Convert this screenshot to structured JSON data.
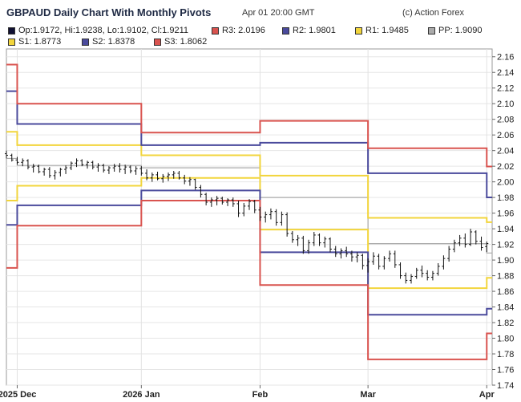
{
  "header": {
    "title": "GBPAUD Daily Chart With Monthly Pivots",
    "timestamp": "Apr 01 20:00 GMT",
    "credit": "(c) Action Forex"
  },
  "legend": [
    {
      "text": "Op:1.9172, Hi:1.9238, Lo:1.9102, Cl:1.9211",
      "color": "#111133"
    },
    {
      "text": "R3: 2.0196",
      "color": "#d9534f"
    },
    {
      "text": "R2: 1.9801",
      "color": "#4a4a9c"
    },
    {
      "text": "R1: 1.9485",
      "color": "#f2d53c"
    },
    {
      "text": "PP: 1.9090",
      "color": "#aaaaaa"
    },
    {
      "text": "S1: 1.8773",
      "color": "#f2d53c"
    },
    {
      "text": "S2: 1.8378",
      "color": "#4a4a9c"
    },
    {
      "text": "S3: 1.8062",
      "color": "#d9534f"
    }
  ],
  "chart_data": {
    "type": "line",
    "title": "GBPAUD Daily Chart With Monthly Pivots",
    "ylim": [
      1.74,
      2.17
    ],
    "y_ticks": [
      "2.16",
      "2.14",
      "2.12",
      "2.10",
      "2.08",
      "2.06",
      "2.04",
      "2.02",
      "2.00",
      "1.98",
      "1.96",
      "1.94",
      "1.92",
      "1.90",
      "1.88",
      "1.86",
      "1.84",
      "1.82",
      "1.80",
      "1.78",
      "1.76",
      "1.74"
    ],
    "x_ticks": [
      {
        "label": "2025 Dec",
        "day": 2
      },
      {
        "label": "2026 Jan",
        "day": 25
      },
      {
        "label": "Feb",
        "day": 47
      },
      {
        "label": "Mar",
        "day": 67
      },
      {
        "label": "Apr",
        "day": 89
      }
    ],
    "x_range": [
      0,
      90
    ],
    "grid": true,
    "pivot_periods": [
      {
        "start": 0,
        "end": 2,
        "R3": 2.15,
        "R2": 2.116,
        "R1": 2.064,
        "PP": 2.03,
        "S1": 1.976,
        "S2": 1.945,
        "S3": 1.89
      },
      {
        "start": 2,
        "end": 25,
        "R3": 2.1,
        "R2": 2.074,
        "R1": 2.047,
        "PP": 2.021,
        "S1": 1.995,
        "S2": 1.97,
        "S3": 1.944
      },
      {
        "start": 25,
        "end": 47,
        "R3": 2.063,
        "R2": 2.047,
        "R1": 2.034,
        "PP": 2.018,
        "S1": 2.005,
        "S2": 1.989,
        "S3": 1.976
      },
      {
        "start": 47,
        "end": 67,
        "R3": 2.078,
        "R2": 2.05,
        "R1": 2.008,
        "PP": 1.98,
        "S1": 1.939,
        "S2": 1.91,
        "S3": 1.868
      },
      {
        "start": 67,
        "end": 89,
        "R3": 2.043,
        "R2": 2.011,
        "R1": 1.954,
        "PP": 1.921,
        "S1": 1.864,
        "S2": 1.83,
        "S3": 1.773
      },
      {
        "start": 89,
        "end": 90,
        "R3": 2.0196,
        "R2": 1.9801,
        "R1": 1.9485,
        "PP": 1.909,
        "S1": 1.8773,
        "S2": 1.8378,
        "S3": 1.8062
      }
    ],
    "ohlc": [
      {
        "day": 0,
        "o": 2.036,
        "h": 2.04,
        "l": 2.03,
        "c": 2.034
      },
      {
        "day": 1,
        "o": 2.034,
        "h": 2.036,
        "l": 2.026,
        "c": 2.028
      },
      {
        "day": 2,
        "o": 2.028,
        "h": 2.032,
        "l": 2.022,
        "c": 2.025
      },
      {
        "day": 3,
        "o": 2.025,
        "h": 2.03,
        "l": 2.02,
        "c": 2.027
      },
      {
        "day": 4,
        "o": 2.027,
        "h": 2.029,
        "l": 2.016,
        "c": 2.019
      },
      {
        "day": 5,
        "o": 2.019,
        "h": 2.023,
        "l": 2.012,
        "c": 2.02
      },
      {
        "day": 6,
        "o": 2.02,
        "h": 2.022,
        "l": 2.011,
        "c": 2.013
      },
      {
        "day": 7,
        "o": 2.013,
        "h": 2.018,
        "l": 2.008,
        "c": 2.016
      },
      {
        "day": 8,
        "o": 2.016,
        "h": 2.019,
        "l": 2.005,
        "c": 2.008
      },
      {
        "day": 9,
        "o": 2.008,
        "h": 2.015,
        "l": 2.003,
        "c": 2.012
      },
      {
        "day": 10,
        "o": 2.012,
        "h": 2.018,
        "l": 2.007,
        "c": 2.016
      },
      {
        "day": 11,
        "o": 2.016,
        "h": 2.021,
        "l": 2.01,
        "c": 2.018
      },
      {
        "day": 12,
        "o": 2.018,
        "h": 2.026,
        "l": 2.015,
        "c": 2.024
      },
      {
        "day": 13,
        "o": 2.024,
        "h": 2.03,
        "l": 2.019,
        "c": 2.027
      },
      {
        "day": 14,
        "o": 2.027,
        "h": 2.029,
        "l": 2.02,
        "c": 2.022
      },
      {
        "day": 15,
        "o": 2.022,
        "h": 2.027,
        "l": 2.017,
        "c": 2.025
      },
      {
        "day": 16,
        "o": 2.025,
        "h": 2.027,
        "l": 2.016,
        "c": 2.019
      },
      {
        "day": 17,
        "o": 2.019,
        "h": 2.024,
        "l": 2.013,
        "c": 2.021
      },
      {
        "day": 18,
        "o": 2.021,
        "h": 2.023,
        "l": 2.012,
        "c": 2.015
      },
      {
        "day": 19,
        "o": 2.015,
        "h": 2.02,
        "l": 2.01,
        "c": 2.018
      },
      {
        "day": 20,
        "o": 2.018,
        "h": 2.023,
        "l": 2.013,
        "c": 2.02
      },
      {
        "day": 21,
        "o": 2.02,
        "h": 2.024,
        "l": 2.012,
        "c": 2.016
      },
      {
        "day": 22,
        "o": 2.016,
        "h": 2.022,
        "l": 2.01,
        "c": 2.019
      },
      {
        "day": 23,
        "o": 2.019,
        "h": 2.021,
        "l": 2.011,
        "c": 2.014
      },
      {
        "day": 24,
        "o": 2.014,
        "h": 2.02,
        "l": 2.009,
        "c": 2.017
      },
      {
        "day": 25,
        "o": 2.017,
        "h": 2.02,
        "l": 2.008,
        "c": 2.011
      },
      {
        "day": 26,
        "o": 2.011,
        "h": 2.016,
        "l": 2.002,
        "c": 2.005
      },
      {
        "day": 27,
        "o": 2.005,
        "h": 2.012,
        "l": 2.0,
        "c": 2.009
      },
      {
        "day": 28,
        "o": 2.009,
        "h": 2.013,
        "l": 2.002,
        "c": 2.004
      },
      {
        "day": 29,
        "o": 2.004,
        "h": 2.01,
        "l": 1.999,
        "c": 2.007
      },
      {
        "day": 30,
        "o": 2.007,
        "h": 2.012,
        "l": 2.001,
        "c": 2.009
      },
      {
        "day": 31,
        "o": 2.009,
        "h": 2.014,
        "l": 2.004,
        "c": 2.011
      },
      {
        "day": 32,
        "o": 2.011,
        "h": 2.014,
        "l": 2.003,
        "c": 2.005
      },
      {
        "day": 33,
        "o": 2.005,
        "h": 2.009,
        "l": 1.997,
        "c": 2.001
      },
      {
        "day": 34,
        "o": 2.001,
        "h": 2.006,
        "l": 1.995,
        "c": 2.003
      },
      {
        "day": 35,
        "o": 2.003,
        "h": 2.004,
        "l": 1.99,
        "c": 1.993
      },
      {
        "day": 36,
        "o": 1.993,
        "h": 1.996,
        "l": 1.98,
        "c": 1.984
      },
      {
        "day": 37,
        "o": 1.984,
        "h": 1.986,
        "l": 1.97,
        "c": 1.974
      },
      {
        "day": 38,
        "o": 1.974,
        "h": 1.98,
        "l": 1.968,
        "c": 1.977
      },
      {
        "day": 39,
        "o": 1.977,
        "h": 1.982,
        "l": 1.97,
        "c": 1.979
      },
      {
        "day": 40,
        "o": 1.979,
        "h": 1.981,
        "l": 1.971,
        "c": 1.974
      },
      {
        "day": 41,
        "o": 1.974,
        "h": 1.979,
        "l": 1.969,
        "c": 1.977
      },
      {
        "day": 42,
        "o": 1.977,
        "h": 1.98,
        "l": 1.968,
        "c": 1.972
      },
      {
        "day": 43,
        "o": 1.972,
        "h": 1.976,
        "l": 1.955,
        "c": 1.96
      },
      {
        "day": 44,
        "o": 1.96,
        "h": 1.973,
        "l": 1.956,
        "c": 1.969
      },
      {
        "day": 45,
        "o": 1.969,
        "h": 1.978,
        "l": 1.964,
        "c": 1.975
      },
      {
        "day": 46,
        "o": 1.975,
        "h": 1.977,
        "l": 1.96,
        "c": 1.964
      },
      {
        "day": 47,
        "o": 1.964,
        "h": 1.968,
        "l": 1.95,
        "c": 1.955
      },
      {
        "day": 48,
        "o": 1.955,
        "h": 1.962,
        "l": 1.948,
        "c": 1.958
      },
      {
        "day": 49,
        "o": 1.958,
        "h": 1.966,
        "l": 1.952,
        "c": 1.962
      },
      {
        "day": 50,
        "o": 1.962,
        "h": 1.965,
        "l": 1.944,
        "c": 1.948
      },
      {
        "day": 51,
        "o": 1.948,
        "h": 1.962,
        "l": 1.944,
        "c": 1.958
      },
      {
        "day": 52,
        "o": 1.958,
        "h": 1.961,
        "l": 1.93,
        "c": 1.934
      },
      {
        "day": 53,
        "o": 1.934,
        "h": 1.937,
        "l": 1.922,
        "c": 1.926
      },
      {
        "day": 54,
        "o": 1.926,
        "h": 1.932,
        "l": 1.918,
        "c": 1.928
      },
      {
        "day": 55,
        "o": 1.928,
        "h": 1.931,
        "l": 1.908,
        "c": 1.912
      },
      {
        "day": 56,
        "o": 1.912,
        "h": 1.926,
        "l": 1.908,
        "c": 1.922
      },
      {
        "day": 57,
        "o": 1.922,
        "h": 1.936,
        "l": 1.918,
        "c": 1.932
      },
      {
        "day": 58,
        "o": 1.932,
        "h": 1.934,
        "l": 1.918,
        "c": 1.922
      },
      {
        "day": 59,
        "o": 1.922,
        "h": 1.93,
        "l": 1.916,
        "c": 1.927
      },
      {
        "day": 60,
        "o": 1.927,
        "h": 1.929,
        "l": 1.91,
        "c": 1.914
      },
      {
        "day": 61,
        "o": 1.914,
        "h": 1.918,
        "l": 1.904,
        "c": 1.908
      },
      {
        "day": 62,
        "o": 1.908,
        "h": 1.915,
        "l": 1.902,
        "c": 1.912
      },
      {
        "day": 63,
        "o": 1.912,
        "h": 1.917,
        "l": 1.904,
        "c": 1.908
      },
      {
        "day": 64,
        "o": 1.908,
        "h": 1.912,
        "l": 1.898,
        "c": 1.904
      },
      {
        "day": 65,
        "o": 1.904,
        "h": 1.91,
        "l": 1.897,
        "c": 1.906
      },
      {
        "day": 66,
        "o": 1.906,
        "h": 1.908,
        "l": 1.888,
        "c": 1.893
      },
      {
        "day": 67,
        "o": 1.893,
        "h": 1.902,
        "l": 1.884,
        "c": 1.898
      },
      {
        "day": 68,
        "o": 1.898,
        "h": 1.91,
        "l": 1.894,
        "c": 1.905
      },
      {
        "day": 69,
        "o": 1.905,
        "h": 1.908,
        "l": 1.888,
        "c": 1.892
      },
      {
        "day": 70,
        "o": 1.892,
        "h": 1.905,
        "l": 1.888,
        "c": 1.902
      },
      {
        "day": 71,
        "o": 1.902,
        "h": 1.912,
        "l": 1.898,
        "c": 1.908
      },
      {
        "day": 72,
        "o": 1.908,
        "h": 1.912,
        "l": 1.89,
        "c": 1.894
      },
      {
        "day": 73,
        "o": 1.894,
        "h": 1.897,
        "l": 1.876,
        "c": 1.88
      },
      {
        "day": 74,
        "o": 1.88,
        "h": 1.884,
        "l": 1.87,
        "c": 1.874
      },
      {
        "day": 75,
        "o": 1.874,
        "h": 1.882,
        "l": 1.87,
        "c": 1.879
      },
      {
        "day": 76,
        "o": 1.879,
        "h": 1.89,
        "l": 1.876,
        "c": 1.887
      },
      {
        "day": 77,
        "o": 1.887,
        "h": 1.893,
        "l": 1.878,
        "c": 1.883
      },
      {
        "day": 78,
        "o": 1.883,
        "h": 1.887,
        "l": 1.874,
        "c": 1.878
      },
      {
        "day": 79,
        "o": 1.878,
        "h": 1.886,
        "l": 1.874,
        "c": 1.883
      },
      {
        "day": 80,
        "o": 1.883,
        "h": 1.896,
        "l": 1.88,
        "c": 1.892
      },
      {
        "day": 81,
        "o": 1.892,
        "h": 1.906,
        "l": 1.888,
        "c": 1.902
      },
      {
        "day": 82,
        "o": 1.902,
        "h": 1.918,
        "l": 1.898,
        "c": 1.914
      },
      {
        "day": 83,
        "o": 1.914,
        "h": 1.926,
        "l": 1.91,
        "c": 1.922
      },
      {
        "day": 84,
        "o": 1.922,
        "h": 1.932,
        "l": 1.918,
        "c": 1.928
      },
      {
        "day": 85,
        "o": 1.928,
        "h": 1.934,
        "l": 1.916,
        "c": 1.92
      },
      {
        "day": 86,
        "o": 1.92,
        "h": 1.94,
        "l": 1.918,
        "c": 1.936
      },
      {
        "day": 87,
        "o": 1.936,
        "h": 1.938,
        "l": 1.92,
        "c": 1.924
      },
      {
        "day": 88,
        "o": 1.924,
        "h": 1.93,
        "l": 1.912,
        "c": 1.916
      },
      {
        "day": 89,
        "o": 1.9172,
        "h": 1.9238,
        "l": 1.9102,
        "c": 1.9211
      }
    ]
  }
}
